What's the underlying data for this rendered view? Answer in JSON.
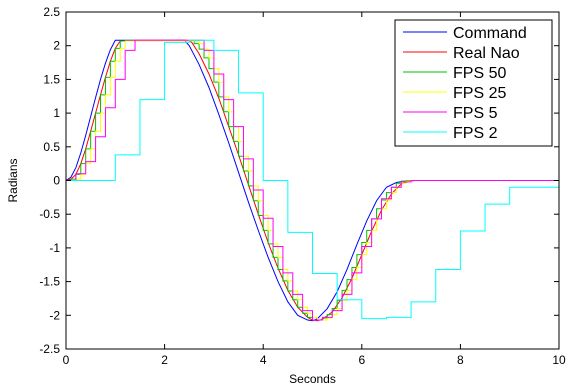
{
  "chart_data": {
    "type": "line",
    "xlabel": "Seconds",
    "ylabel": "Radians",
    "xlim": [
      0,
      10
    ],
    "ylim": [
      -2.5,
      2.5
    ],
    "xticks": [
      0,
      2,
      4,
      6,
      8,
      10
    ],
    "yticks": [
      -2.5,
      -2,
      -1.5,
      -1,
      -0.5,
      0,
      0.5,
      1,
      1.5,
      2,
      2.5
    ],
    "grid": false,
    "legend_position": "top-right",
    "series": [
      {
        "name": "Command",
        "color": "#0000ff",
        "step": false,
        "x": [
          0,
          0.1,
          0.2,
          0.3,
          0.4,
          0.5,
          0.6,
          0.7,
          0.8,
          0.9,
          1.0,
          2.4,
          2.5,
          2.7,
          2.9,
          3.1,
          3.3,
          3.5,
          3.7,
          3.9,
          4.1,
          4.3,
          4.5,
          4.7,
          4.9,
          5.0,
          5.1,
          5.3,
          5.5,
          5.7,
          5.9,
          6.1,
          6.3,
          6.5,
          6.7,
          6.9,
          7.0,
          10
        ],
        "y": [
          0,
          0.05,
          0.19,
          0.41,
          0.67,
          0.95,
          1.23,
          1.5,
          1.74,
          1.94,
          2.08,
          2.08,
          2.0,
          1.72,
          1.38,
          0.98,
          0.56,
          0.12,
          -0.32,
          -0.74,
          -1.14,
          -1.5,
          -1.8,
          -2.0,
          -2.07,
          -2.08,
          -2.05,
          -1.9,
          -1.65,
          -1.32,
          -0.95,
          -0.6,
          -0.3,
          -0.1,
          -0.03,
          -0.005,
          0,
          0
        ]
      },
      {
        "name": "Real Nao",
        "color": "#ff0000",
        "step": false,
        "x": [
          0,
          0.1,
          0.2,
          0.3,
          0.4,
          0.5,
          0.6,
          0.7,
          0.8,
          0.9,
          1.0,
          1.1,
          2.45,
          2.55,
          2.7,
          2.9,
          3.1,
          3.3,
          3.5,
          3.7,
          3.9,
          4.1,
          4.3,
          4.5,
          4.7,
          4.9,
          5.0,
          5.1,
          5.2,
          5.4,
          5.6,
          5.8,
          6.0,
          6.2,
          6.4,
          6.6,
          6.8,
          7.0,
          7.1,
          10
        ],
        "y": [
          0,
          0.02,
          0.09,
          0.25,
          0.47,
          0.73,
          1.0,
          1.27,
          1.53,
          1.77,
          1.96,
          2.07,
          2.08,
          2.05,
          1.88,
          1.58,
          1.22,
          0.8,
          0.38,
          -0.06,
          -0.5,
          -0.92,
          -1.3,
          -1.63,
          -1.88,
          -2.03,
          -2.07,
          -2.08,
          -2.06,
          -1.95,
          -1.74,
          -1.45,
          -1.1,
          -0.75,
          -0.44,
          -0.2,
          -0.05,
          -0.005,
          0,
          0
        ]
      },
      {
        "name": "FPS 50",
        "color": "#00c000",
        "step": true,
        "x": [
          0,
          0.1,
          0.2,
          0.3,
          0.4,
          0.5,
          0.6,
          0.7,
          0.8,
          0.9,
          1.0,
          1.1,
          2.5,
          2.6,
          2.7,
          2.8,
          2.9,
          3.0,
          3.1,
          3.2,
          3.3,
          3.4,
          3.5,
          3.6,
          3.7,
          3.8,
          3.9,
          4.0,
          4.1,
          4.2,
          4.3,
          4.4,
          4.5,
          4.6,
          4.7,
          4.8,
          4.9,
          5.0,
          5.1,
          5.2,
          5.3,
          5.4,
          5.5,
          5.6,
          5.7,
          5.8,
          5.9,
          6.0,
          6.1,
          6.2,
          6.3,
          6.4,
          6.5,
          6.6,
          6.7,
          6.8,
          6.9,
          7.0,
          7.1,
          10
        ],
        "y": [
          0,
          0.02,
          0.09,
          0.25,
          0.47,
          0.73,
          1.0,
          1.27,
          1.53,
          1.77,
          1.96,
          2.07,
          2.07,
          2.03,
          1.95,
          1.82,
          1.66,
          1.46,
          1.24,
          1.02,
          0.8,
          0.58,
          0.36,
          0.14,
          -0.08,
          -0.3,
          -0.52,
          -0.74,
          -0.94,
          -1.14,
          -1.32,
          -1.49,
          -1.64,
          -1.77,
          -1.88,
          -1.97,
          -2.03,
          -2.07,
          -2.07,
          -2.04,
          -1.99,
          -1.9,
          -1.78,
          -1.63,
          -1.47,
          -1.29,
          -1.1,
          -0.92,
          -0.74,
          -0.57,
          -0.42,
          -0.29,
          -0.18,
          -0.1,
          -0.04,
          -0.01,
          0,
          0,
          0,
          0
        ]
      },
      {
        "name": "FPS 25",
        "color": "#ffff00",
        "step": true,
        "x": [
          0,
          0.1,
          0.2,
          0.3,
          0.4,
          0.5,
          0.6,
          0.7,
          0.8,
          0.9,
          1.0,
          1.1,
          1.2,
          2.6,
          2.7,
          2.8,
          2.9,
          3.0,
          3.1,
          3.2,
          3.3,
          3.4,
          3.5,
          3.6,
          3.7,
          3.8,
          3.9,
          4.0,
          4.1,
          4.2,
          4.3,
          4.4,
          4.5,
          4.6,
          4.7,
          4.8,
          4.9,
          5.0,
          5.1,
          5.2,
          5.3,
          5.4,
          5.5,
          5.6,
          5.7,
          5.8,
          5.9,
          6.0,
          6.1,
          6.2,
          6.3,
          6.4,
          6.5,
          6.6,
          6.7,
          6.8,
          6.9,
          7.0,
          7.1,
          10
        ],
        "y": [
          0,
          0,
          0.02,
          0.09,
          0.25,
          0.47,
          0.73,
          1.0,
          1.27,
          1.53,
          1.77,
          1.96,
          2.07,
          2.07,
          2.03,
          1.95,
          1.82,
          1.66,
          1.46,
          1.24,
          1.02,
          0.8,
          0.58,
          0.36,
          0.14,
          -0.08,
          -0.3,
          -0.52,
          -0.74,
          -0.94,
          -1.14,
          -1.32,
          -1.49,
          -1.64,
          -1.77,
          -1.88,
          -1.97,
          -2.03,
          -2.07,
          -2.07,
          -2.04,
          -1.99,
          -1.9,
          -1.78,
          -1.63,
          -1.47,
          -1.29,
          -1.1,
          -0.92,
          -0.74,
          -0.57,
          -0.42,
          -0.29,
          -0.18,
          -0.1,
          -0.04,
          -0.01,
          0,
          0,
          0
        ]
      },
      {
        "name": "FPS 5",
        "color": "#ff00ff",
        "step": true,
        "x": [
          0,
          0.2,
          0.4,
          0.6,
          0.8,
          1.0,
          1.2,
          1.4,
          2.8,
          3.0,
          3.2,
          3.4,
          3.6,
          3.8,
          4.0,
          4.2,
          4.4,
          4.6,
          4.8,
          5.0,
          5.2,
          5.4,
          5.6,
          5.8,
          6.0,
          6.2,
          6.4,
          6.6,
          6.8,
          7.0,
          7.2,
          10
        ],
        "y": [
          0,
          0.1,
          0.28,
          0.65,
          1.08,
          1.5,
          1.93,
          2.08,
          1.93,
          1.58,
          1.2,
          0.8,
          0.32,
          -0.14,
          -0.56,
          -0.98,
          -1.37,
          -1.69,
          -1.93,
          -2.07,
          -2.03,
          -1.93,
          -1.69,
          -1.37,
          -0.98,
          -0.57,
          -0.27,
          -0.1,
          -0.02,
          0,
          0,
          0
        ]
      },
      {
        "name": "FPS 2",
        "color": "#00ffff",
        "step": true,
        "x": [
          0,
          0.5,
          1.0,
          1.5,
          2.0,
          2.5,
          3.0,
          3.5,
          4.0,
          4.5,
          5.0,
          5.5,
          6.0,
          6.5,
          7.0,
          7.5,
          8.0,
          8.5,
          9.0,
          9.5,
          10
        ],
        "y": [
          0,
          0,
          0.38,
          1.2,
          2.05,
          2.08,
          1.93,
          1.3,
          0,
          -0.77,
          -1.38,
          -1.77,
          -2.05,
          -2.03,
          -1.8,
          -1.32,
          -0.75,
          -0.35,
          -0.1,
          -0.1,
          -0.1
        ]
      }
    ]
  }
}
